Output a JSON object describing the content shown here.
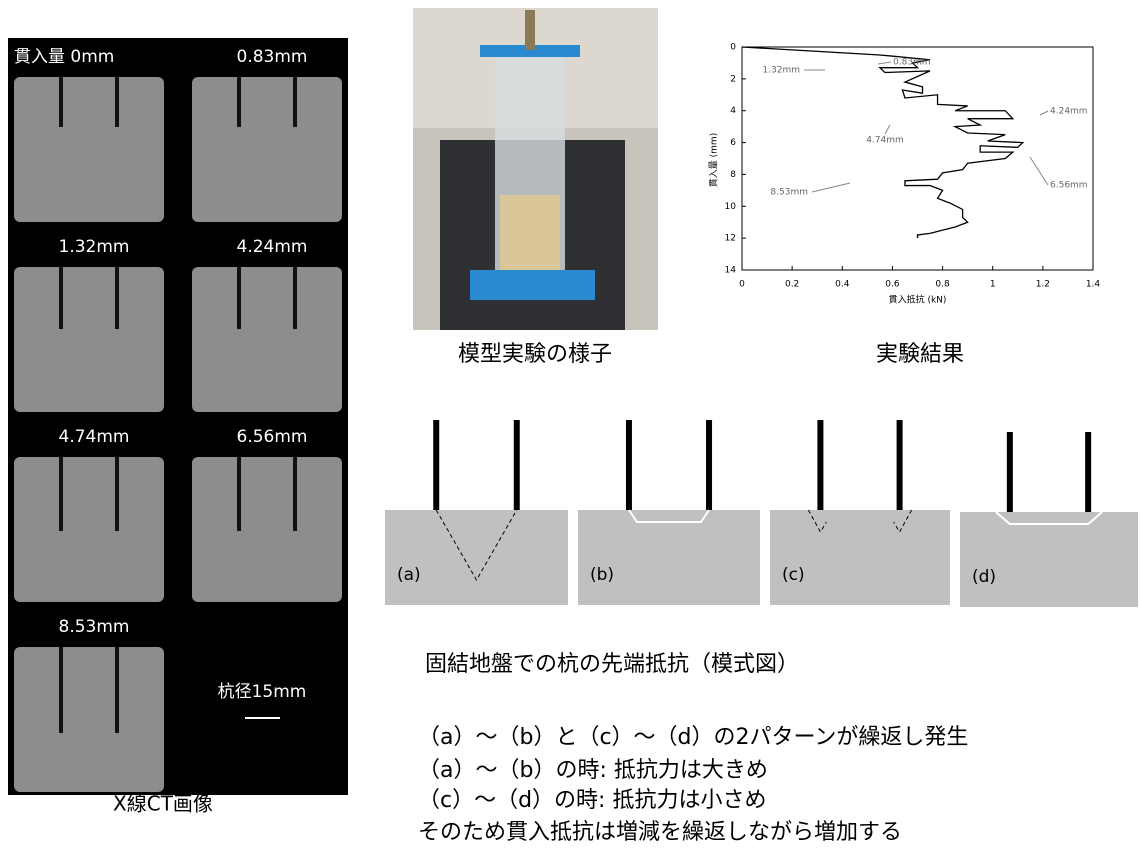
{
  "ct_panel": {
    "frames": [
      "貫入量  0mm",
      "0.83mm",
      "1.32mm",
      "4.24mm",
      "4.74mm",
      "6.56mm",
      "8.53mm"
    ],
    "scale_label": "杭径15mm",
    "caption": "X線CT画像"
  },
  "photo": {
    "caption": "模型実験の様子"
  },
  "chart_data": {
    "type": "line",
    "caption": "実験結果",
    "xlabel": "貫入抵抗  (kN)",
    "ylabel": "貫入量   (mm)",
    "xlim": [
      0,
      1.4
    ],
    "xticks": [
      0,
      0.2,
      0.4,
      0.6,
      0.8,
      1,
      1.2,
      1.4
    ],
    "ylim": [
      14,
      0
    ],
    "yticks": [
      0,
      2,
      4,
      6,
      8,
      10,
      12,
      14
    ],
    "series": [
      {
        "color": "#000000",
        "x": [
          0,
          0.55,
          0.75,
          0.68,
          0.7,
          0.55,
          0.57,
          0.75,
          0.65,
          0.72,
          0.72,
          0.64,
          0.65,
          0.78,
          0.78,
          0.9,
          0.85,
          1.05,
          1.08,
          0.9,
          0.95,
          0.85,
          0.9,
          1.05,
          0.98,
          1.12,
          1.1,
          0.95,
          0.95,
          1.08,
          1.05,
          0.9,
          0.88,
          0.8,
          0.78,
          0.65,
          0.65,
          0.75,
          0.8,
          0.78,
          0.83,
          0.88,
          0.88,
          0.9,
          0.85,
          0.8,
          0.75,
          0.7,
          0.7
        ],
        "values": [
          0,
          0.5,
          0.8,
          1,
          1.3,
          1.3,
          1.6,
          1.5,
          2.2,
          2.5,
          2.9,
          2.7,
          3.2,
          3,
          3.6,
          3.7,
          4,
          4,
          4.5,
          4.5,
          4.9,
          5,
          5.4,
          5.5,
          5.9,
          6,
          6.3,
          6.2,
          6.6,
          6.6,
          7,
          7.3,
          7.7,
          7.9,
          8.3,
          8.4,
          8.7,
          8.7,
          9,
          9.5,
          9.8,
          10.2,
          10.7,
          11,
          11.3,
          11.5,
          11.7,
          11.8,
          12
        ]
      }
    ],
    "annotations": [
      "0.83mm",
      "1.32mm",
      "4.24mm",
      "4.74mm",
      "6.56mm",
      "8.53mm"
    ]
  },
  "diagram": {
    "panels": [
      "(a)",
      "(b)",
      "(c)",
      "(d)"
    ],
    "title": "固結地盤での杭の先端抵抗（模式図）",
    "notes": [
      "（a）～（b）と（c）～（d）の2パターンが繰返し発生",
      "（a）～（b）の時: 抵抗力は大きめ",
      "（c）～（d）の時: 抵抗力は小さめ",
      "そのため貫入抵抗は増減を繰返しながら増加する"
    ]
  }
}
